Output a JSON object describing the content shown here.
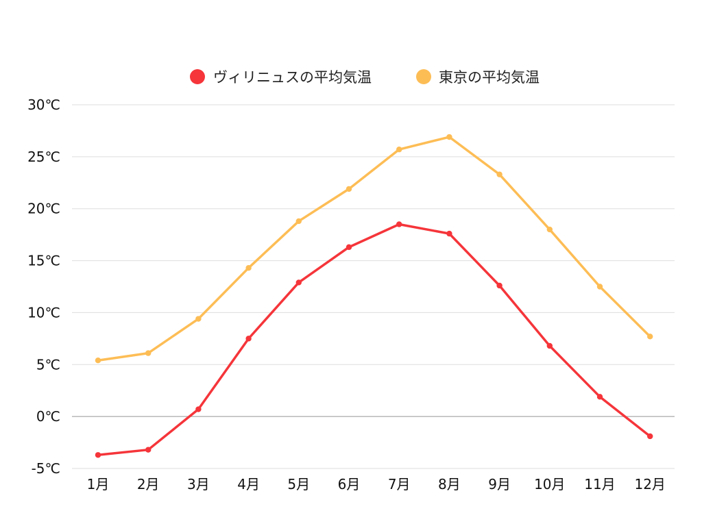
{
  "chart_data": {
    "type": "line",
    "categories": [
      "1月",
      "2月",
      "3月",
      "4月",
      "5月",
      "6月",
      "7月",
      "8月",
      "9月",
      "10月",
      "11月",
      "12月"
    ],
    "series": [
      {
        "name": "ヴィリニュスの平均気温",
        "color": "#f5353a",
        "values": [
          -3.7,
          -3.2,
          0.7,
          7.5,
          12.9,
          16.3,
          18.5,
          17.6,
          12.6,
          6.8,
          1.9,
          -1.9
        ]
      },
      {
        "name": "東京の平均気温",
        "color": "#fdbd55",
        "values": [
          5.4,
          6.1,
          9.4,
          14.3,
          18.8,
          21.9,
          25.7,
          26.9,
          23.3,
          18.0,
          12.5,
          7.7
        ]
      }
    ],
    "yticks": [
      -5,
      0,
      5,
      10,
      15,
      20,
      25,
      30
    ],
    "ytick_labels": [
      "-5℃",
      "0℃",
      "5℃",
      "10℃",
      "15℃",
      "20℃",
      "25℃",
      "30℃"
    ],
    "ylim": [
      -5,
      30
    ],
    "grid": true,
    "legend_position": "top-center",
    "title": "",
    "xlabel": "",
    "ylabel": ""
  }
}
